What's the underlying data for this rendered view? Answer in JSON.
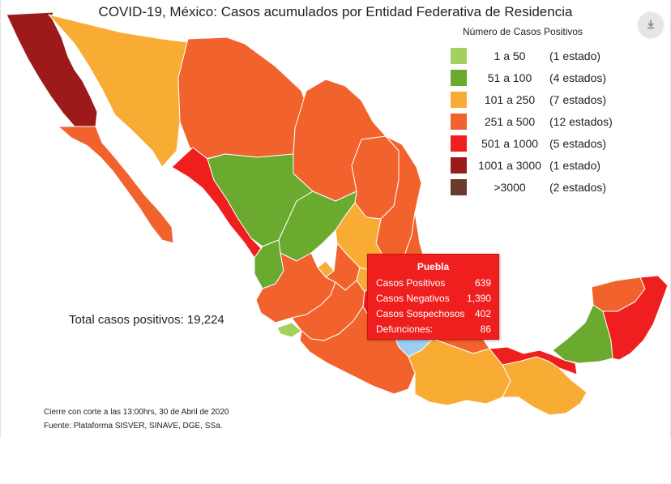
{
  "title": "COVID-19, México: Casos acumulados por Entidad Federativa de Residencia",
  "download_icon": "download-icon",
  "legend": {
    "title": "Número de Casos Positivos",
    "items": [
      {
        "range": "1 a 50",
        "count": "(1 estado)",
        "color": "#a4d05f"
      },
      {
        "range": "51 a 100",
        "count": "(4 estados)",
        "color": "#6aaa2e"
      },
      {
        "range": "101 a 250",
        "count": "(7 estados)",
        "color": "#f8ac34"
      },
      {
        "range": "251 a 500",
        "count": "(12 estados)",
        "color": "#f2622c"
      },
      {
        "range": "501 a 1000",
        "count": "(5 estados)",
        "color": "#ef1f1f"
      },
      {
        "range": "1001 a 3000",
        "count": "(1 estado)",
        "color": "#9c1a1a"
      },
      {
        "range": ">3000",
        "count": "(2 estados)",
        "color": "#6b3a2c"
      }
    ]
  },
  "total": "Total casos positivos: 19,224",
  "footer": {
    "line1": "Cierre con corte a las 13:00hrs, 30 de Abril de 2020",
    "line2": "Fuente: Plataforma SISVER, SINAVE, DGE, SSa."
  },
  "tooltip": {
    "title": "Puebla",
    "rows": [
      {
        "label": "Casos Positivos",
        "value": "639"
      },
      {
        "label": "Casos Negativos",
        "value": "1,390"
      },
      {
        "label": "Casos Sospechosos",
        "value": "402"
      },
      {
        "label": "Defunciones:",
        "value": "86"
      }
    ]
  },
  "colors": {
    "green_light": "#a4d05f",
    "green": "#6aaa2e",
    "yellow": "#f8ac34",
    "orange": "#f2622c",
    "red": "#ef1f1f",
    "dark_red": "#9c1a1a",
    "brown": "#6b3a2c",
    "hover": "#9ccdf3"
  }
}
